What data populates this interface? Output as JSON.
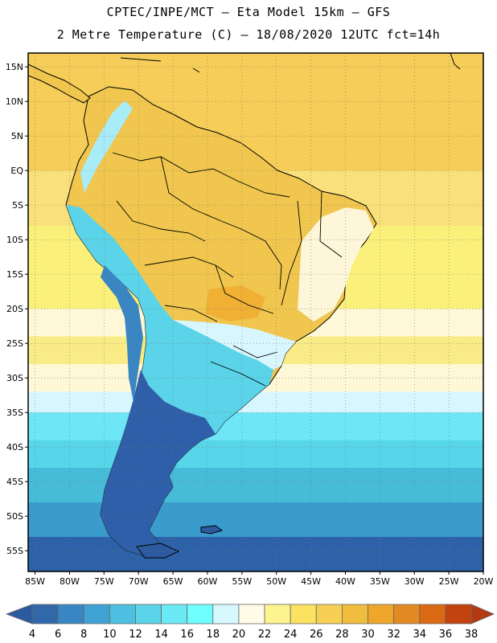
{
  "header": {
    "line1": "CPTEC/INPE/MCT –  Eta Model 15km – GFS",
    "line2": "2 Metre Temperature (C) – 18/08/2020 12UTC fct=14h"
  },
  "map": {
    "lon_range": [
      -86,
      -20
    ],
    "lat_range": [
      17,
      -58
    ],
    "lat_labels": [
      "15N",
      "10N",
      "5N",
      "EQ",
      "5S",
      "10S",
      "15S",
      "20S",
      "25S",
      "30S",
      "35S",
      "40S",
      "45S",
      "50S",
      "55S"
    ],
    "lon_labels": [
      "85W",
      "80W",
      "75W",
      "70W",
      "65W",
      "60W",
      "55W",
      "50W",
      "45W",
      "40W",
      "35W",
      "30W",
      "25W",
      "20W"
    ],
    "ocean_bands": [
      {
        "from_lat": 17,
        "to_lat": 0,
        "color": "#f5cd58"
      },
      {
        "from_lat": 0,
        "to_lat": -8,
        "color": "#f9e07a"
      },
      {
        "from_lat": -8,
        "to_lat": -20,
        "color": "#faf07a"
      },
      {
        "from_lat": -20,
        "to_lat": -24,
        "color": "#fff8d6"
      },
      {
        "from_lat": -24,
        "to_lat": -28,
        "color": "#f9ec86"
      },
      {
        "from_lat": -28,
        "to_lat": -32,
        "color": "#fff8d6"
      },
      {
        "from_lat": -32,
        "to_lat": -35,
        "color": "#d8f6fd"
      },
      {
        "from_lat": -35,
        "to_lat": -39,
        "color": "#6fe6f5"
      },
      {
        "from_lat": -39,
        "to_lat": -43,
        "color": "#57d6ea"
      },
      {
        "from_lat": -43,
        "to_lat": -48,
        "color": "#46bcd9"
      },
      {
        "from_lat": -48,
        "to_lat": -53,
        "color": "#3a9ccd"
      },
      {
        "from_lat": -53,
        "to_lat": -58,
        "color": "#2d62a8"
      }
    ]
  },
  "colorbar": {
    "labels": [
      "4",
      "6",
      "8",
      "10",
      "12",
      "14",
      "16",
      "18",
      "20",
      "22",
      "24",
      "26",
      "28",
      "30",
      "32",
      "34",
      "36",
      "38"
    ],
    "colors": [
      "#2c5aa0",
      "#3068aa",
      "#3a86c2",
      "#41a3d4",
      "#4dbfe0",
      "#5bd3e8",
      "#6be9f4",
      "#6effff",
      "#d8f8ff",
      "#fffbe6",
      "#fdf38f",
      "#fbe260",
      "#f6cf54",
      "#f1bd3e",
      "#eea72a",
      "#e38a22",
      "#db6914",
      "#c4420d",
      "#b33a10"
    ]
  }
}
